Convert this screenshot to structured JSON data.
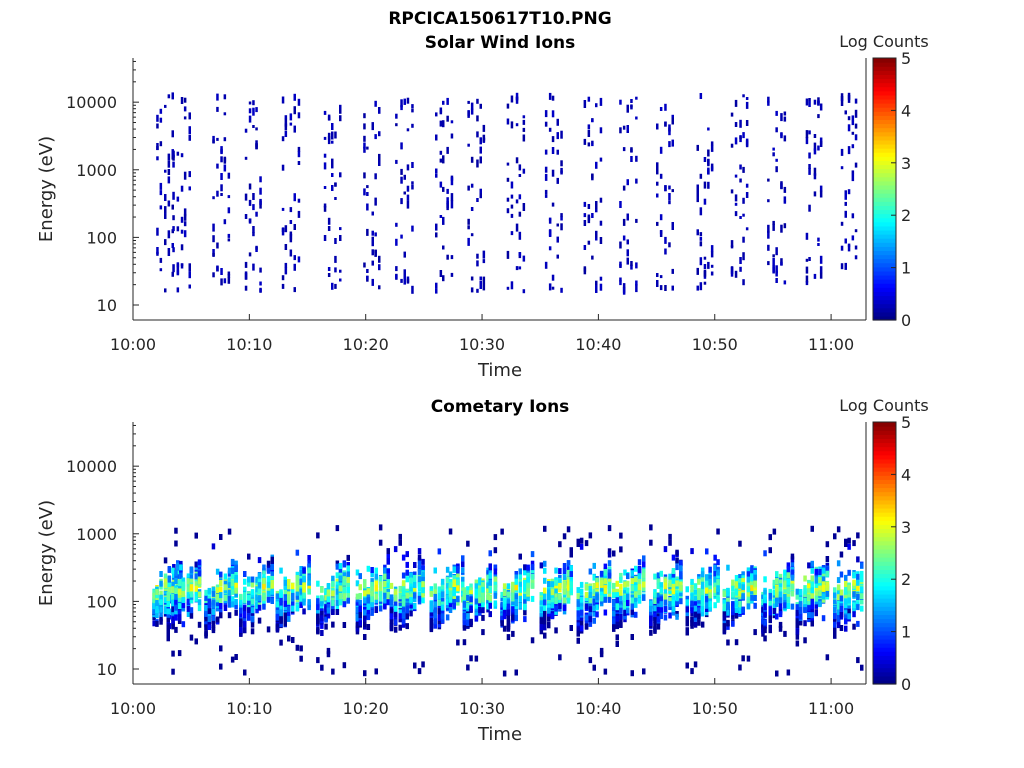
{
  "figure_title": "RPCICA150617T10.PNG",
  "chart_data": [
    {
      "type": "heatmap",
      "title": "Solar Wind Ions",
      "xlabel": "Time",
      "ylabel": "Energy (eV)",
      "x_ticks": [
        "10:00",
        "10:10",
        "10:20",
        "10:30",
        "10:40",
        "10:50",
        "11:00"
      ],
      "y_ticks": [
        "10",
        "100",
        "1000",
        "10000"
      ],
      "xlim": [
        "10:00",
        "11:03"
      ],
      "ylim": [
        6,
        45000
      ],
      "y_scale": "log",
      "colorbar": {
        "label": "Log Counts",
        "ticks": [
          "0",
          "1",
          "2",
          "3",
          "4",
          "5"
        ],
        "range": [
          0,
          5
        ],
        "colormap": "jet"
      },
      "pattern": "sparse",
      "bursts_min": [
        2.8,
        4.2,
        7.6,
        10.4,
        13.6,
        17.2,
        20.6,
        23.4,
        26.8,
        29.6,
        33.0,
        36.2,
        39.6,
        42.6,
        45.8,
        49.2,
        52.2,
        55.4,
        58.6,
        61.6
      ]
    },
    {
      "type": "heatmap",
      "title": "Cometary Ions",
      "xlabel": "Time",
      "ylabel": "Energy (eV)",
      "x_ticks": [
        "10:00",
        "10:10",
        "10:20",
        "10:30",
        "10:40",
        "10:50",
        "11:00"
      ],
      "y_ticks": [
        "10",
        "100",
        "1000",
        "10000"
      ],
      "xlim": [
        "10:00",
        "11:03"
      ],
      "ylim": [
        6,
        45000
      ],
      "y_scale": "log",
      "colorbar": {
        "label": "Log Counts",
        "ticks": [
          "0",
          "1",
          "2",
          "3",
          "4",
          "5"
        ],
        "range": [
          0,
          5
        ],
        "colormap": "jet"
      },
      "pattern": "dense",
      "bursts_min": [
        2.8,
        4.4,
        7.6,
        10.6,
        13.8,
        17.2,
        20.6,
        23.6,
        27.0,
        29.8,
        33.0,
        36.4,
        39.6,
        42.6,
        45.8,
        49.0,
        52.2,
        55.4,
        58.4,
        61.6
      ]
    }
  ]
}
